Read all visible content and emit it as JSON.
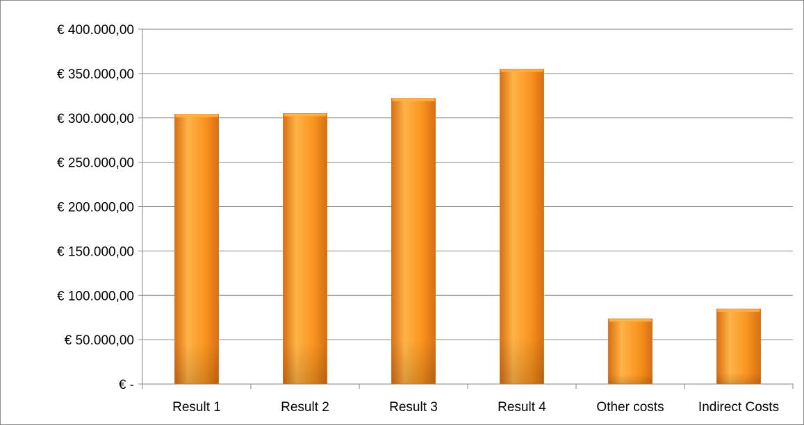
{
  "chart_data": {
    "type": "bar",
    "categories": [
      "Result 1",
      "Result 2",
      "Result 3",
      "Result 4",
      "Other costs",
      "Indirect Costs"
    ],
    "values": [
      304000,
      305000,
      322000,
      355000,
      73500,
      84500
    ],
    "ylim": [
      0,
      400000
    ],
    "yticks": [
      0,
      50000,
      100000,
      150000,
      200000,
      250000,
      300000,
      350000,
      400000
    ],
    "ytick_labels": [
      "€ -",
      "€ 50.000,00",
      "€ 100.000,00",
      "€ 150.000,00",
      "€ 200.000,00",
      "€ 250.000,00",
      "€ 300.000,00",
      "€ 350.000,00",
      "€ 400.000,00"
    ],
    "title": "",
    "xlabel": "",
    "ylabel": "",
    "grid": true,
    "legend": "none",
    "bar_color": "#F7931E",
    "bar_color_light": "#FFB347",
    "bar_color_dark": "#D96F12",
    "gridline_color": "#868686"
  }
}
